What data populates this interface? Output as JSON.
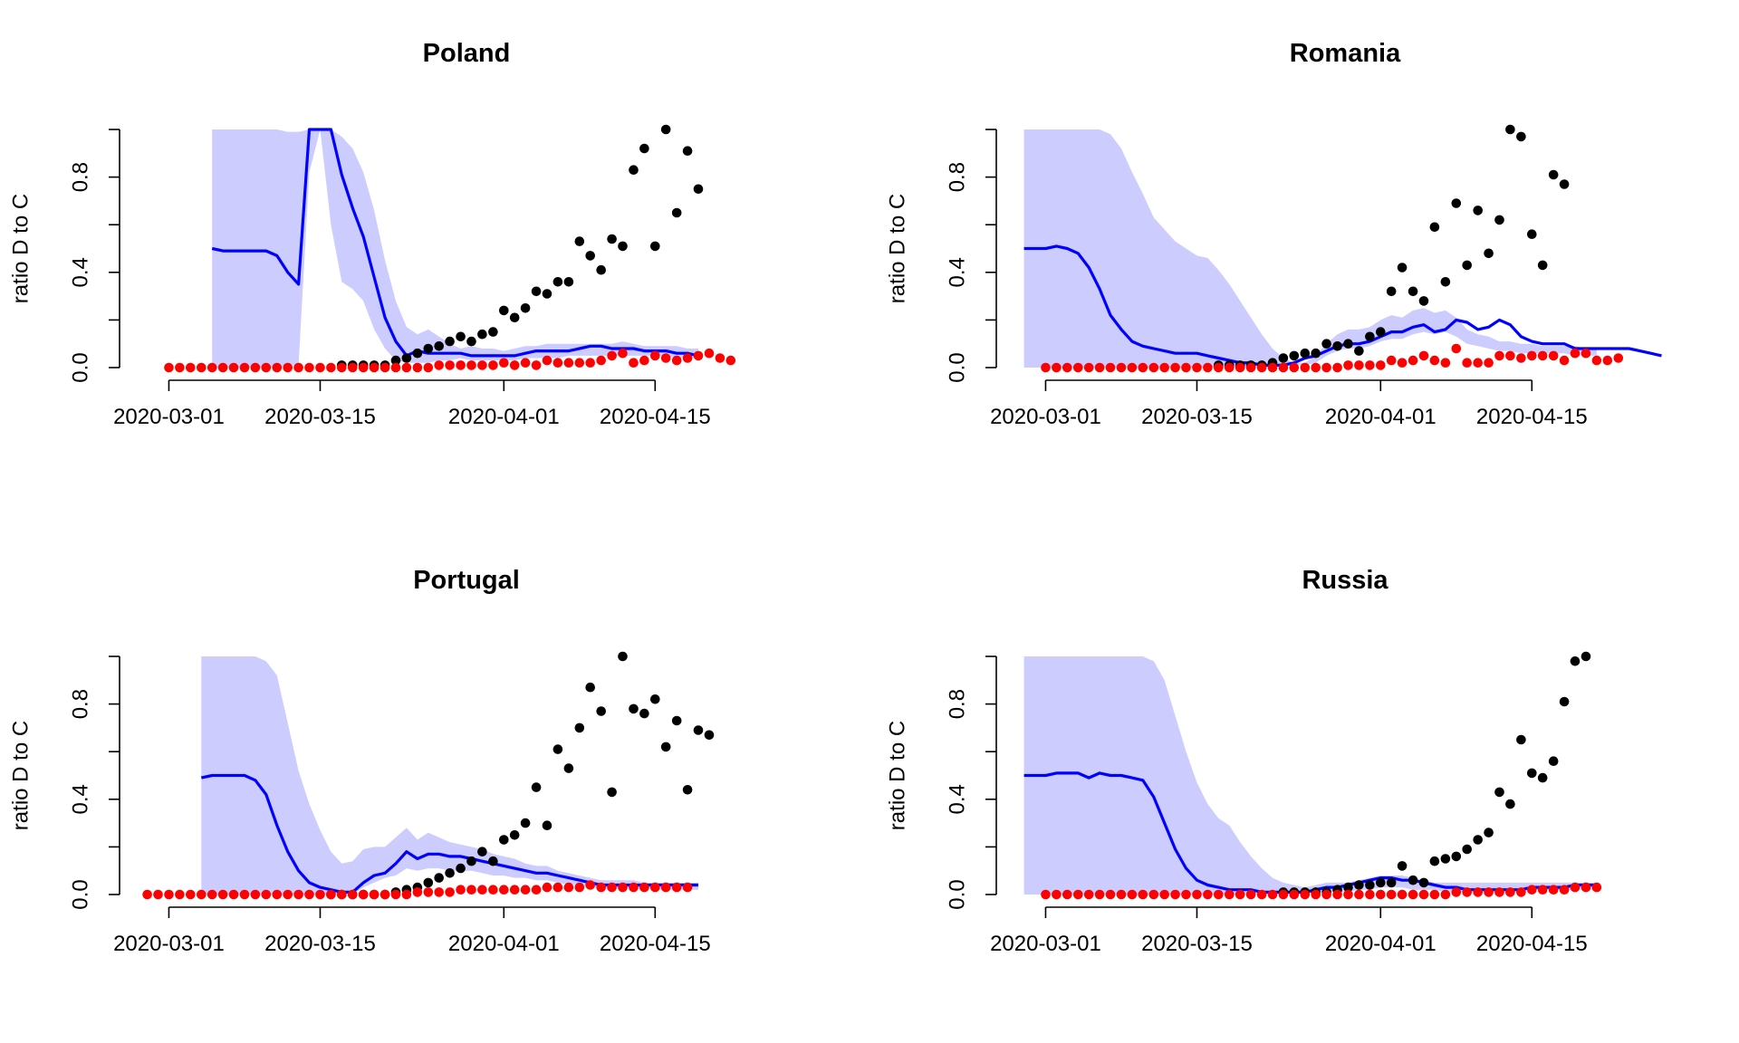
{
  "chart_data": [
    {
      "type": "line",
      "title": "Poland",
      "xlabel": "",
      "ylabel": "ratio D to C",
      "x_range": [
        "2020-02-28",
        "2020-04-19"
      ],
      "ylim": [
        0,
        1
      ],
      "x_ticks": [
        "2020-03-01",
        "2020-03-15",
        "2020-04-01",
        "2020-04-15"
      ],
      "y_ticks": [
        "0.0",
        "0.4",
        "0.8"
      ],
      "grid": false,
      "colors": {
        "line": "#0000ff",
        "band": "#ccccff",
        "black_points": "#000000",
        "red_points": "#ff0000"
      },
      "band": {
        "start": "2020-03-05",
        "upper": [
          1,
          1,
          1,
          1,
          1,
          1,
          1,
          0.99,
          0.99,
          1,
          1,
          1,
          0.97,
          0.92,
          0.82,
          0.66,
          0.45,
          0.28,
          0.17,
          0.14,
          0.16,
          0.13,
          0.1,
          0.08,
          0.09,
          0.08,
          0.08,
          0.07,
          0.08,
          0.09,
          0.09,
          0.1,
          0.1,
          0.1,
          0.1,
          0.1,
          0.1,
          0.1,
          0.11,
          0.1,
          0.09,
          0.09,
          0.09,
          0.09,
          0.08,
          0.08
        ],
        "lower": [
          0,
          0,
          0,
          0,
          0,
          0,
          0,
          0.01,
          0.01,
          0.82,
          1,
          0.6,
          0.36,
          0.33,
          0.28,
          0.16,
          0.08,
          0.03,
          0.02,
          0.02,
          0.02,
          0.03,
          0.03,
          0.04,
          0.03,
          0.03,
          0.03,
          0.03,
          0.03,
          0.04,
          0.04,
          0.04,
          0.04,
          0.05,
          0.05,
          0.05,
          0.05,
          0.05,
          0.05,
          0.05,
          0.05,
          0.05,
          0.05,
          0.04,
          0.04,
          0.04
        ]
      },
      "line": {
        "start": "2020-03-05",
        "values": [
          0.5,
          0.49,
          0.49,
          0.49,
          0.49,
          0.49,
          0.47,
          0.4,
          0.35,
          1,
          1,
          1,
          0.81,
          0.67,
          0.55,
          0.38,
          0.21,
          0.11,
          0.05,
          0.07,
          0.06,
          0.06,
          0.06,
          0.06,
          0.05,
          0.05,
          0.05,
          0.05,
          0.05,
          0.06,
          0.07,
          0.07,
          0.07,
          0.07,
          0.08,
          0.09,
          0.09,
          0.08,
          0.08,
          0.08,
          0.07,
          0.07,
          0.07,
          0.06,
          0.06,
          0.05
        ]
      },
      "black_points": {
        "start": "2020-03-17",
        "values": [
          0.01,
          0.01,
          0.01,
          0.01,
          0.01,
          0.03,
          0.04,
          0.06,
          0.08,
          0.09,
          0.11,
          0.13,
          0.11,
          0.14,
          0.15,
          0.24,
          0.21,
          0.25,
          0.32,
          0.31,
          0.36,
          0.36,
          0.53,
          0.47,
          0.41,
          0.54,
          0.51,
          0.83,
          0.92,
          0.51,
          1,
          0.65,
          0.91,
          0.75
        ]
      },
      "red_points": {
        "start": "2020-03-01",
        "values": [
          0,
          0,
          0,
          0,
          0,
          0,
          0,
          0,
          0,
          0,
          0,
          0,
          0,
          0,
          0,
          0,
          0,
          0,
          0,
          0,
          0,
          0,
          0,
          0,
          0,
          0.01,
          0.01,
          0.01,
          0.01,
          0.01,
          0.01,
          0.02,
          0.01,
          0.02,
          0.01,
          0.03,
          0.02,
          0.02,
          0.02,
          0.02,
          0.03,
          0.05,
          0.06,
          0.02,
          0.03,
          0.05,
          0.04,
          0.03,
          0.04,
          0.05,
          0.06,
          0.04,
          0.03
        ]
      }
    },
    {
      "type": "line",
      "title": "Romania",
      "xlabel": "",
      "ylabel": "ratio D to C",
      "x_range": [
        "2020-02-28",
        "2020-04-19"
      ],
      "ylim": [
        0,
        1
      ],
      "x_ticks": [
        "2020-03-01",
        "2020-03-15",
        "2020-04-01",
        "2020-04-15"
      ],
      "y_ticks": [
        "0.0",
        "0.4",
        "0.8"
      ],
      "grid": false,
      "colors": {
        "line": "#0000ff",
        "band": "#ccccff",
        "black_points": "#000000",
        "red_points": "#ff0000"
      },
      "band": {
        "start": "2020-02-28",
        "upper": [
          1,
          1,
          1,
          1,
          1,
          1,
          1,
          1,
          0.98,
          0.92,
          0.82,
          0.73,
          0.63,
          0.58,
          0.53,
          0.5,
          0.47,
          0.46,
          0.41,
          0.35,
          0.28,
          0.21,
          0.14,
          0.08,
          0.04,
          0.02,
          0.02,
          0.05,
          0.1,
          0.14,
          0.16,
          0.16,
          0.17,
          0.2,
          0.22,
          0.21,
          0.24,
          0.25,
          0.23,
          0.24,
          0.21,
          0.16,
          0.14,
          0.13,
          0.11,
          0.11,
          0.1,
          0.1,
          0.09,
          0.09,
          0.09,
          0.09,
          0.08,
          0.08
        ],
        "lower": [
          0,
          0,
          0,
          0,
          0,
          0,
          0,
          0,
          0,
          0,
          0,
          0,
          0,
          0,
          0,
          0,
          0,
          0,
          0,
          0,
          0,
          0,
          0,
          0,
          0.01,
          0.01,
          0.01,
          0.02,
          0.05,
          0.07,
          0.08,
          0.08,
          0.09,
          0.11,
          0.12,
          0.12,
          0.14,
          0.15,
          0.14,
          0.15,
          0.13,
          0.1,
          0.09,
          0.08,
          0.07,
          0.07,
          0.06,
          0.06,
          0.06,
          0.06,
          0.06,
          0.05,
          0.05,
          0.05
        ]
      },
      "line": {
        "start": "2020-02-28",
        "values": [
          0.5,
          0.5,
          0.5,
          0.51,
          0.5,
          0.48,
          0.42,
          0.33,
          0.22,
          0.16,
          0.11,
          0.09,
          0.08,
          0.07,
          0.06,
          0.06,
          0.06,
          0.05,
          0.04,
          0.03,
          0.02,
          0.02,
          0.01,
          0.01,
          0.01,
          0.02,
          0.04,
          0.05,
          0.07,
          0.09,
          0.1,
          0.1,
          0.11,
          0.13,
          0.15,
          0.15,
          0.17,
          0.18,
          0.15,
          0.16,
          0.2,
          0.19,
          0.16,
          0.17,
          0.2,
          0.18,
          0.13,
          0.11,
          0.1,
          0.1,
          0.1,
          0.08,
          0.08,
          0.08,
          0.08,
          0.08,
          0.08,
          0.07,
          0.06,
          0.05
        ]
      },
      "black_points": {
        "start": "2020-03-17",
        "values": [
          0.01,
          0.01,
          0.01,
          0.01,
          0.01,
          0.02,
          0.04,
          0.05,
          0.06,
          0.06,
          0.1,
          0.09,
          0.1,
          0.07,
          0.13,
          0.15,
          0.32,
          0.42,
          0.32,
          0.28,
          0.59,
          0.36,
          0.69,
          0.43,
          0.66,
          0.48,
          0.62,
          1,
          0.97,
          0.56,
          0.43,
          0.81,
          0.77
        ]
      },
      "red_points": {
        "start": "2020-03-01",
        "values": [
          0,
          0,
          0,
          0,
          0,
          0,
          0,
          0,
          0,
          0,
          0,
          0,
          0,
          0,
          0,
          0,
          0,
          0,
          0,
          0,
          0,
          0,
          0,
          0,
          0,
          0,
          0,
          0,
          0.01,
          0.01,
          0.01,
          0.01,
          0.03,
          0.02,
          0.03,
          0.05,
          0.03,
          0.02,
          0.08,
          0.02,
          0.02,
          0.02,
          0.05,
          0.05,
          0.04,
          0.05,
          0.05,
          0.05,
          0.03,
          0.06,
          0.06,
          0.03,
          0.03,
          0.04
        ]
      }
    },
    {
      "type": "line",
      "title": "Portugal",
      "xlabel": "",
      "ylabel": "ratio D to C",
      "x_range": [
        "2020-02-28",
        "2020-04-19"
      ],
      "ylim": [
        0,
        1
      ],
      "x_ticks": [
        "2020-03-01",
        "2020-03-15",
        "2020-04-01",
        "2020-04-15"
      ],
      "y_ticks": [
        "0.0",
        "0.4",
        "0.8"
      ],
      "grid": false,
      "colors": {
        "line": "#0000ff",
        "band": "#ccccff",
        "black_points": "#000000",
        "red_points": "#ff0000"
      },
      "band": {
        "start": "2020-03-04",
        "upper": [
          1,
          1,
          1,
          1,
          1,
          1,
          0.98,
          0.92,
          0.72,
          0.52,
          0.38,
          0.27,
          0.18,
          0.13,
          0.14,
          0.19,
          0.2,
          0.2,
          0.24,
          0.28,
          0.23,
          0.26,
          0.24,
          0.22,
          0.21,
          0.2,
          0.19,
          0.17,
          0.16,
          0.15,
          0.13,
          0.12,
          0.12,
          0.1,
          0.09,
          0.08,
          0.07,
          0.06,
          0.06,
          0.06,
          0.06,
          0.05,
          0.05,
          0.05,
          0.05,
          0.05,
          0.05
        ],
        "lower": [
          0,
          0,
          0,
          0,
          0,
          0,
          0,
          0,
          0,
          0,
          0,
          0,
          0,
          0,
          0,
          0.03,
          0.05,
          0.07,
          0.08,
          0.11,
          0.1,
          0.11,
          0.11,
          0.1,
          0.1,
          0.1,
          0.09,
          0.08,
          0.08,
          0.07,
          0.07,
          0.06,
          0.06,
          0.05,
          0.04,
          0.04,
          0.03,
          0.03,
          0.03,
          0.03,
          0.03,
          0.03,
          0.02,
          0.02,
          0.02,
          0.02,
          0.02
        ]
      },
      "line": {
        "start": "2020-03-04",
        "values": [
          0.49,
          0.5,
          0.5,
          0.5,
          0.5,
          0.48,
          0.42,
          0.29,
          0.18,
          0.1,
          0.05,
          0.03,
          0.02,
          0.01,
          0.01,
          0.05,
          0.08,
          0.09,
          0.13,
          0.18,
          0.15,
          0.17,
          0.17,
          0.16,
          0.16,
          0.15,
          0.14,
          0.13,
          0.12,
          0.11,
          0.1,
          0.09,
          0.09,
          0.08,
          0.07,
          0.06,
          0.05,
          0.04,
          0.04,
          0.04,
          0.04,
          0.04,
          0.04,
          0.04,
          0.04,
          0.04,
          0.04
        ]
      },
      "black_points": {
        "start": "2020-03-16",
        "values": [
          0,
          0,
          0,
          0,
          0,
          0,
          0.01,
          0.02,
          0.03,
          0.05,
          0.07,
          0.09,
          0.11,
          0.14,
          0.18,
          0.14,
          0.23,
          0.25,
          0.3,
          0.45,
          0.29,
          0.61,
          0.53,
          0.7,
          0.87,
          0.77,
          0.43,
          1,
          0.78,
          0.76,
          0.82,
          0.62,
          0.73,
          0.44,
          0.69,
          0.67
        ]
      },
      "red_points": {
        "start": "2020-02-28",
        "values": [
          0,
          0,
          0,
          0,
          0,
          0,
          0,
          0,
          0,
          0,
          0,
          0,
          0,
          0,
          0,
          0,
          0,
          0,
          0,
          0,
          0,
          0,
          0,
          0,
          0,
          0.01,
          0.01,
          0.01,
          0.01,
          0.02,
          0.02,
          0.02,
          0.02,
          0.02,
          0.02,
          0.02,
          0.02,
          0.03,
          0.03,
          0.03,
          0.03,
          0.04,
          0.03,
          0.03,
          0.03,
          0.03,
          0.03,
          0.03,
          0.03,
          0.03,
          0.03
        ]
      }
    },
    {
      "type": "line",
      "title": "Russia",
      "xlabel": "",
      "ylabel": "ratio D to C",
      "x_range": [
        "2020-02-28",
        "2020-04-19"
      ],
      "ylim": [
        0,
        1
      ],
      "x_ticks": [
        "2020-03-01",
        "2020-03-15",
        "2020-04-01",
        "2020-04-15"
      ],
      "y_ticks": [
        "0.0",
        "0.4",
        "0.8"
      ],
      "grid": false,
      "colors": {
        "line": "#0000ff",
        "band": "#ccccff",
        "black_points": "#000000",
        "red_points": "#ff0000"
      },
      "band": {
        "start": "2020-02-28",
        "upper": [
          1,
          1,
          1,
          1,
          1,
          1,
          1,
          1,
          1,
          1,
          1,
          1,
          0.98,
          0.9,
          0.75,
          0.6,
          0.47,
          0.38,
          0.32,
          0.29,
          0.22,
          0.16,
          0.11,
          0.07,
          0.05,
          0.04,
          0.03,
          0.04,
          0.05,
          0.05,
          0.05,
          0.06,
          0.07,
          0.08,
          0.08,
          0.08,
          0.07,
          0.06,
          0.05,
          0.05,
          0.05,
          0.05,
          0.05,
          0.05,
          0.05,
          0.05,
          0.05,
          0.05,
          0.05,
          0.05,
          0.05,
          0.05,
          0.05,
          0.05
        ],
        "lower": [
          0,
          0,
          0,
          0,
          0,
          0,
          0,
          0,
          0,
          0,
          0,
          0,
          0,
          0,
          0,
          0,
          0,
          0,
          0,
          0,
          0,
          0,
          0,
          0,
          0,
          0,
          0,
          0.01,
          0.01,
          0.01,
          0.01,
          0.02,
          0.02,
          0.03,
          0.03,
          0.03,
          0.02,
          0.02,
          0.02,
          0.01,
          0.01,
          0.01,
          0.01,
          0.01,
          0.01,
          0.01,
          0.01,
          0.02,
          0.02,
          0.02,
          0.02,
          0.02,
          0.02,
          0.02
        ]
      },
      "line": {
        "start": "2020-02-28",
        "values": [
          0.5,
          0.5,
          0.5,
          0.51,
          0.51,
          0.51,
          0.49,
          0.51,
          0.5,
          0.5,
          0.49,
          0.48,
          0.41,
          0.3,
          0.19,
          0.11,
          0.06,
          0.04,
          0.03,
          0.02,
          0.02,
          0.02,
          0.01,
          0.01,
          0.01,
          0.01,
          0.01,
          0.02,
          0.03,
          0.03,
          0.04,
          0.05,
          0.06,
          0.07,
          0.07,
          0.06,
          0.06,
          0.05,
          0.04,
          0.03,
          0.03,
          0.02,
          0.02,
          0.02,
          0.02,
          0.02,
          0.02,
          0.03,
          0.03,
          0.03,
          0.03,
          0.04,
          0.04,
          0.04
        ]
      },
      "black_points": {
        "start": "2020-03-23",
        "values": [
          0.01,
          0.01,
          0.01,
          0.01,
          0.01,
          0.02,
          0.03,
          0.04,
          0.04,
          0.05,
          0.05,
          0.12,
          0.06,
          0.05,
          0.14,
          0.15,
          0.16,
          0.19,
          0.23,
          0.26,
          0.43,
          0.38,
          0.65,
          0.51,
          0.49,
          0.56,
          0.81,
          0.98,
          1
        ]
      },
      "red_points": {
        "start": "2020-03-01",
        "values": [
          0,
          0,
          0,
          0,
          0,
          0,
          0,
          0,
          0,
          0,
          0,
          0,
          0,
          0,
          0,
          0,
          0,
          0,
          0,
          0,
          0,
          0,
          0,
          0,
          0,
          0,
          0,
          0,
          0,
          0,
          0,
          0,
          0,
          0,
          0,
          0,
          0,
          0,
          0.01,
          0.01,
          0.01,
          0.01,
          0.01,
          0.01,
          0.01,
          0.02,
          0.02,
          0.02,
          0.02,
          0.03,
          0.03,
          0.03
        ]
      }
    }
  ]
}
